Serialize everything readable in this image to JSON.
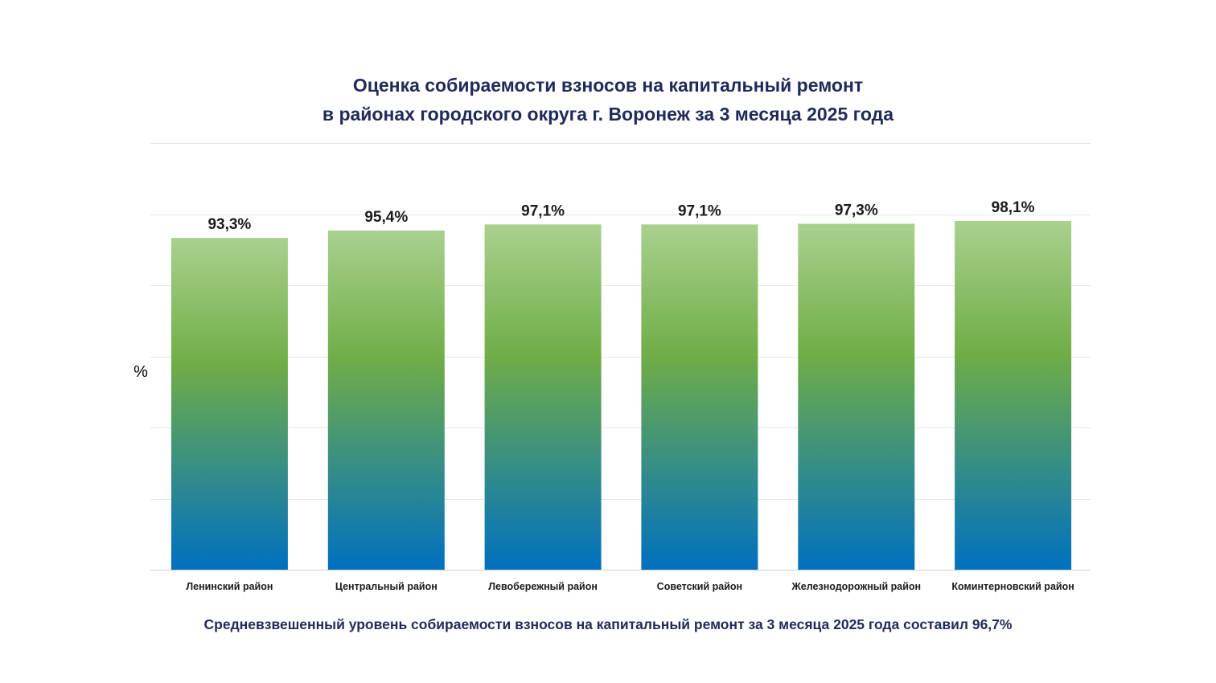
{
  "chart_data": {
    "type": "bar",
    "title": "Оценка собираемости взносов на капитальный ремонт",
    "subtitle": "в районах городского округа г. Воронеж за 3 месяца 2025 года",
    "ylabel": "%",
    "xlabel": "",
    "categories": [
      "Ленинский район",
      "Центральный район",
      "Левобережный район",
      "Советский район",
      "Железнодорожный район",
      "Коминтерновский район"
    ],
    "values": [
      93.3,
      95.4,
      97.1,
      97.1,
      97.3,
      98.1
    ],
    "value_labels": [
      "93,3%",
      "95,4%",
      "97,1%",
      "97,1%",
      "97,3%",
      "98,1%"
    ],
    "ylim": [
      0,
      120
    ],
    "grid": true,
    "bar_gradient": [
      "#a9d18e",
      "#70ad47",
      "#0070c0"
    ],
    "footnote": "Средневзвешенный уровень собираемости взносов на капитальный ремонт за 3 месяца 2025 года составил 96,7%"
  }
}
